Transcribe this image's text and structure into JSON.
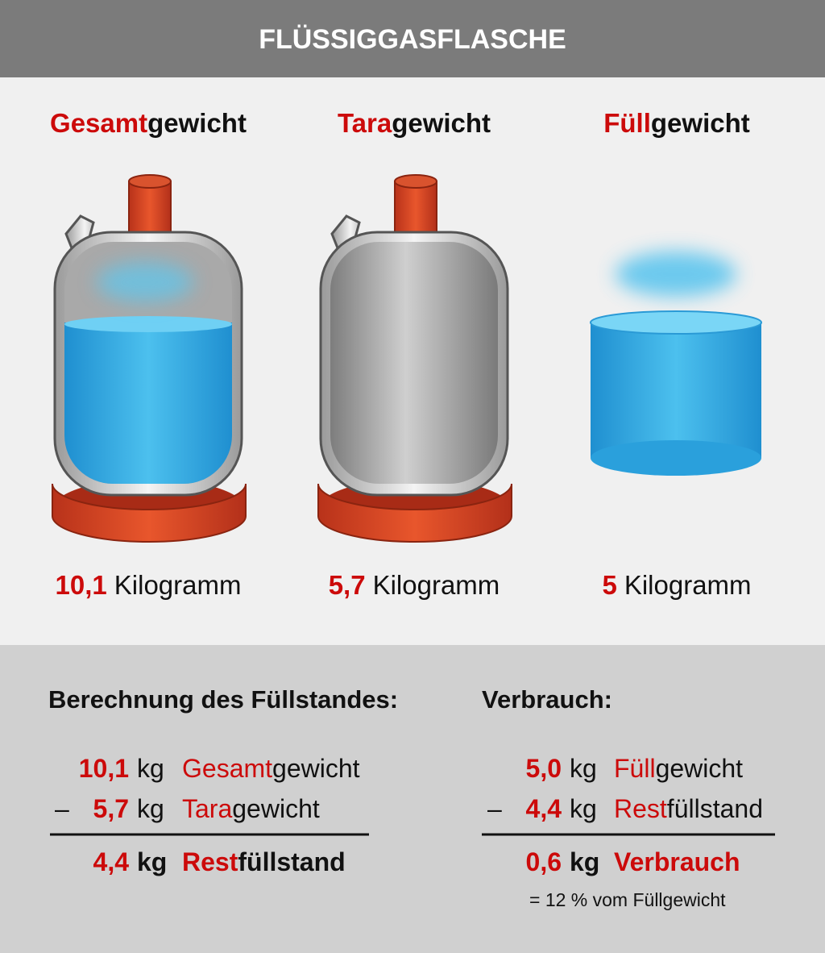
{
  "header": {
    "title": "FLÜSSIGGASFLASCHE"
  },
  "items": [
    {
      "label": {
        "red": "Gesamt",
        "black": "gewicht"
      },
      "weight": {
        "value": "10,1",
        "unit": "Kilogramm"
      }
    },
    {
      "label": {
        "red": "Tara",
        "black": "gewicht"
      },
      "weight": {
        "value": "5,7",
        "unit": "Kilogramm"
      }
    },
    {
      "label": {
        "red": "Füll",
        "black": "gewicht"
      },
      "weight": {
        "value": "5",
        "unit": "Kilogramm"
      }
    }
  ],
  "calculation": {
    "title": "Berechnung des Füllstandes:",
    "rows": [
      {
        "value": "10,1",
        "unit": "kg",
        "label": {
          "red": "Gesamt",
          "black": "gewicht"
        }
      },
      {
        "sign": "–",
        "value": "5,7",
        "unit": "kg",
        "label": {
          "red": "Tara",
          "black": "gewicht"
        }
      }
    ],
    "result": {
      "value": "4,4",
      "unit": "kg",
      "label": {
        "red": "Rest",
        "black": "füllstand"
      }
    }
  },
  "consumption": {
    "title": "Verbrauch:",
    "rows": [
      {
        "value": "5,0",
        "unit": "kg",
        "label": {
          "red": "Füll",
          "black": "gewicht"
        }
      },
      {
        "sign": "–",
        "value": "4,4",
        "unit": "kg",
        "label": {
          "red": "Rest",
          "black": "füllstand"
        }
      }
    ],
    "result": {
      "value": "0,6",
      "unit": "kg",
      "label": {
        "red": "Verbrauch"
      }
    },
    "note": "= 12 % vom Füllgewicht"
  }
}
